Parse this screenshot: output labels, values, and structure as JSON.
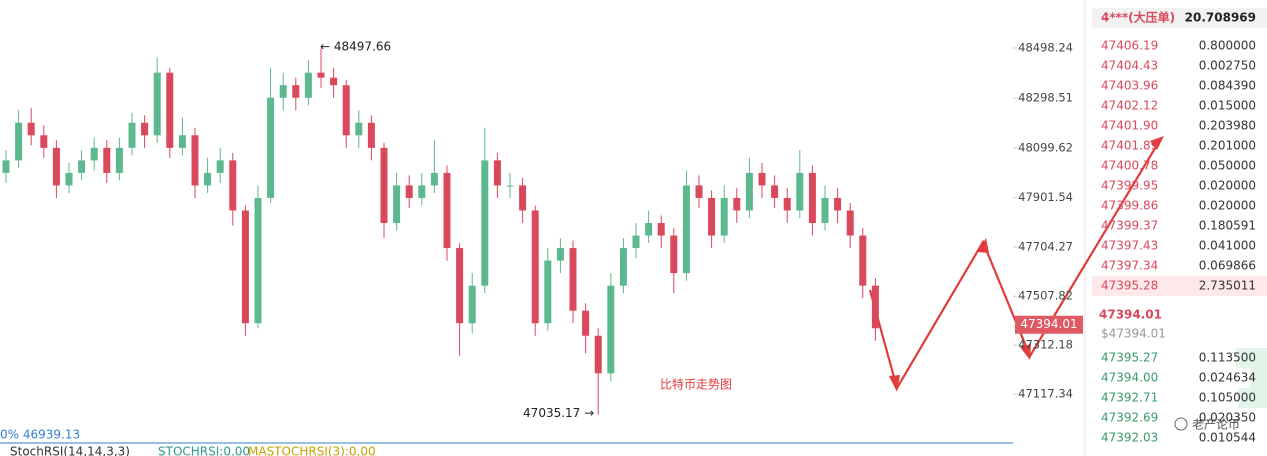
{
  "chart_data": {
    "type": "candlestick",
    "ylim": [
      46934,
      48690
    ],
    "yticks": [
      48498.24,
      48298.51,
      48099.62,
      47901.54,
      47704.27,
      47507.82,
      47312.18,
      47117.34
    ],
    "up_color": "#5cb88e",
    "down_color": "#d9485b",
    "open": [
      48000,
      48050,
      48200,
      48150,
      48100,
      47950,
      48000,
      48050,
      48100,
      48000,
      48100,
      48200,
      48150,
      48400,
      48100,
      48150,
      47950,
      48000,
      48050,
      47850,
      47400,
      47900,
      48300,
      48350,
      48300,
      48400,
      48380,
      48350,
      48150,
      48200,
      48100,
      47800,
      47950,
      47900,
      47950,
      48000,
      47700,
      47400,
      47550,
      48050,
      47950,
      47950,
      47850,
      47400,
      47650,
      47700,
      47450,
      47350,
      47200,
      47550,
      47700,
      47750,
      47800,
      47750,
      47600,
      47950,
      47900,
      47750,
      47900,
      47850,
      48000,
      47950,
      47900,
      47850,
      48000,
      47800,
      47900,
      47850,
      47750,
      47550
    ],
    "high": [
      48090,
      48250,
      48260,
      48190,
      48130,
      48040,
      48090,
      48140,
      48130,
      48140,
      48240,
      48230,
      48460,
      48420,
      48220,
      48180,
      48060,
      48100,
      48080,
      47870,
      47950,
      48420,
      48400,
      48380,
      48450,
      48497.66,
      48420,
      48370,
      48250,
      48230,
      48120,
      48000,
      47990,
      48000,
      48130,
      48030,
      47720,
      47600,
      48180,
      48080,
      48000,
      47980,
      47870,
      47700,
      47740,
      47730,
      47480,
      47380,
      47600,
      47740,
      47800,
      47850,
      47830,
      47780,
      48010,
      47990,
      47930,
      47950,
      47940,
      48060,
      48040,
      47990,
      47940,
      48090,
      48030,
      47950,
      47940,
      47880,
      47780,
      47580
    ],
    "low": [
      47960,
      48020,
      48110,
      48060,
      47900,
      47920,
      47970,
      48010,
      47960,
      47970,
      48070,
      48100,
      48120,
      48060,
      48070,
      47900,
      47920,
      47960,
      47790,
      47350,
      47380,
      47880,
      48250,
      48250,
      48270,
      48340,
      48300,
      48100,
      48100,
      48050,
      47740,
      47770,
      47860,
      47870,
      47920,
      47650,
      47270,
      47360,
      47520,
      47900,
      47900,
      47800,
      47350,
      47370,
      47600,
      47400,
      47280,
      47035.17,
      47170,
      47520,
      47660,
      47720,
      47700,
      47520,
      47570,
      47860,
      47700,
      47720,
      47800,
      47820,
      47900,
      47860,
      47800,
      47820,
      47750,
      47770,
      47800,
      47700,
      47500,
      47330
    ],
    "close": [
      48050,
      48200,
      48150,
      48100,
      47950,
      48000,
      48050,
      48100,
      48000,
      48100,
      48200,
      48150,
      48400,
      48100,
      48150,
      47950,
      48000,
      48050,
      47850,
      47400,
      47900,
      48300,
      48350,
      48300,
      48400,
      48380,
      48350,
      48150,
      48200,
      48100,
      47800,
      47950,
      47900,
      47950,
      48000,
      47700,
      47400,
      47550,
      48050,
      47950,
      47950,
      47850,
      47400,
      47650,
      47700,
      47450,
      47350,
      47200,
      47550,
      47700,
      47750,
      47800,
      47750,
      47600,
      47950,
      47900,
      47750,
      47900,
      47850,
      48000,
      47950,
      47900,
      47850,
      48000,
      47800,
      47900,
      47850,
      47750,
      47550,
      47380
    ],
    "high_label": "← 48497.66",
    "low_label": "47035.17 →",
    "last_price": 47394.01,
    "left_label": "0% 46939.13",
    "annotation": "比特币走势图",
    "indicator": [
      "StochRSI(14,14,3,3)",
      "STOCHRSI:0.00",
      "MASTOCHRSI(3):0.00"
    ]
  },
  "order_book": {
    "big_order": [
      "4***(大压单)",
      "20.708969"
    ],
    "asks": [
      [
        "47406.19",
        "0.800000"
      ],
      [
        "47404.43",
        "0.002750"
      ],
      [
        "47403.96",
        "0.084390"
      ],
      [
        "47402.12",
        "0.015000"
      ],
      [
        "47401.90",
        "0.203980"
      ],
      [
        "47401.89",
        "0.201000"
      ],
      [
        "47400.78",
        "0.050000"
      ],
      [
        "47399.95",
        "0.020000"
      ],
      [
        "47399.86",
        "0.020000"
      ],
      [
        "47399.37",
        "0.180591"
      ],
      [
        "47397.43",
        "0.041000"
      ],
      [
        "47397.34",
        "0.069866"
      ],
      [
        "47395.28",
        "2.735011"
      ]
    ],
    "price": "47394.01",
    "price_usd": "$47394.01",
    "bids": [
      [
        "47395.27",
        "0.113500"
      ],
      [
        "47394.00",
        "0.024634"
      ],
      [
        "47392.71",
        "0.105000"
      ],
      [
        "47392.69",
        "0.020350"
      ],
      [
        "47392.03",
        "0.010544"
      ]
    ]
  },
  "watermark": "老产论币"
}
